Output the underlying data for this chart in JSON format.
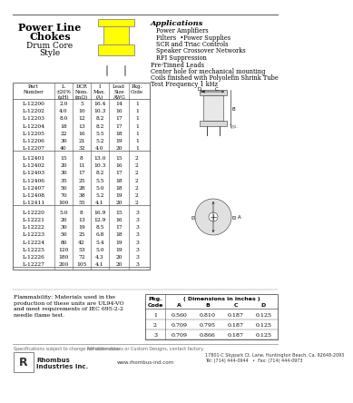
{
  "title_line1": "Power Line",
  "title_line2": "Chokes",
  "subtitle1": "Drum Core",
  "subtitle2": "Style",
  "applications_title": "Applications",
  "applications": [
    "Power Amplifiers",
    "Filters  •Power Supplies",
    "SCR and Triac Controls",
    "Speaker Crossover Networks",
    "RFI Suppression"
  ],
  "features": [
    "Pre-Tinned Leads",
    "Center hole for mechanical mounting",
    "Coils finished with Polyolefin Shrink Tube",
    "Test Frequency 1 kHz"
  ],
  "table_groups": [
    {
      "rows": [
        [
          "L-12200",
          "2.0",
          "5",
          "16.4",
          "14",
          "1"
        ],
        [
          "L-12202",
          "4.0",
          "10",
          "10.3",
          "16",
          "1"
        ],
        [
          "L-12203",
          "8.0",
          "12",
          "8.2",
          "17",
          "1"
        ],
        [
          "L-12204",
          "18",
          "13",
          "8.2",
          "17",
          "1"
        ],
        [
          "L-12205",
          "22",
          "16",
          "5.5",
          "18",
          "1"
        ],
        [
          "L-12206",
          "30",
          "21",
          "5.2",
          "19",
          "1"
        ],
        [
          "L-12207",
          "40",
          "32",
          "4.0",
          "20",
          "1"
        ]
      ]
    },
    {
      "rows": [
        [
          "L-12401",
          "15",
          "8",
          "13.0",
          "15",
          "2"
        ],
        [
          "L-12402",
          "20",
          "11",
          "10.3",
          "16",
          "2"
        ],
        [
          "L-12403",
          "30",
          "17",
          "8.2",
          "17",
          "2"
        ],
        [
          "L-12406",
          "35",
          "25",
          "5.5",
          "18",
          "2"
        ],
        [
          "L-12407",
          "50",
          "28",
          "5.0",
          "18",
          "2"
        ],
        [
          "L-12408",
          "70",
          "38",
          "5.2",
          "19",
          "2"
        ],
        [
          "L-12411",
          "100",
          "55",
          "4.1",
          "20",
          "2"
        ]
      ]
    },
    {
      "rows": [
        [
          "L-12220",
          "5.0",
          "8",
          "16.9",
          "15",
          "3"
        ],
        [
          "L-12221",
          "20",
          "13",
          "12.9",
          "16",
          "3"
        ],
        [
          "L-12222",
          "30",
          "19",
          "8.5",
          "17",
          "3"
        ],
        [
          "L-12223",
          "50",
          "25",
          "6.8",
          "18",
          "3"
        ],
        [
          "L-12224",
          "80",
          "42",
          "5.4",
          "19",
          "3"
        ],
        [
          "L-12225",
          "120",
          "53",
          "5.0",
          "19",
          "3"
        ],
        [
          "L-12226",
          "180",
          "72",
          "4.3",
          "20",
          "3"
        ],
        [
          "L-12227",
          "200",
          "105",
          "4.1",
          "20",
          "3"
        ]
      ]
    }
  ],
  "pkg_rows": [
    [
      "1",
      "0.560",
      "0.810",
      "0.187",
      "0.125"
    ],
    [
      "2",
      "0.709",
      "0.795",
      "0.187",
      "0.125"
    ],
    [
      "3",
      "0.709",
      "0.866",
      "0.187",
      "0.125"
    ]
  ],
  "flammability_text": "Flammability: Materials used in the\nproduction of these units are UL94-VO\nand meet requirements of IEC 695-2-2\nneedle flame test.",
  "footer_text1": "Specifications subject to change without notice.",
  "footer_text2": "For other values or Custom Designs, contact factory.",
  "footer_address": "17801-C Skypark Ct. Lane, Huntington Beach, Ca. 92648-2093\nTel: (714) 444-0944   •  Fax: (714) 444-0973",
  "footer_web": "www.rhombus-ind.com",
  "yellow_color": "#FFFF00",
  "bg_color": "#ffffff"
}
